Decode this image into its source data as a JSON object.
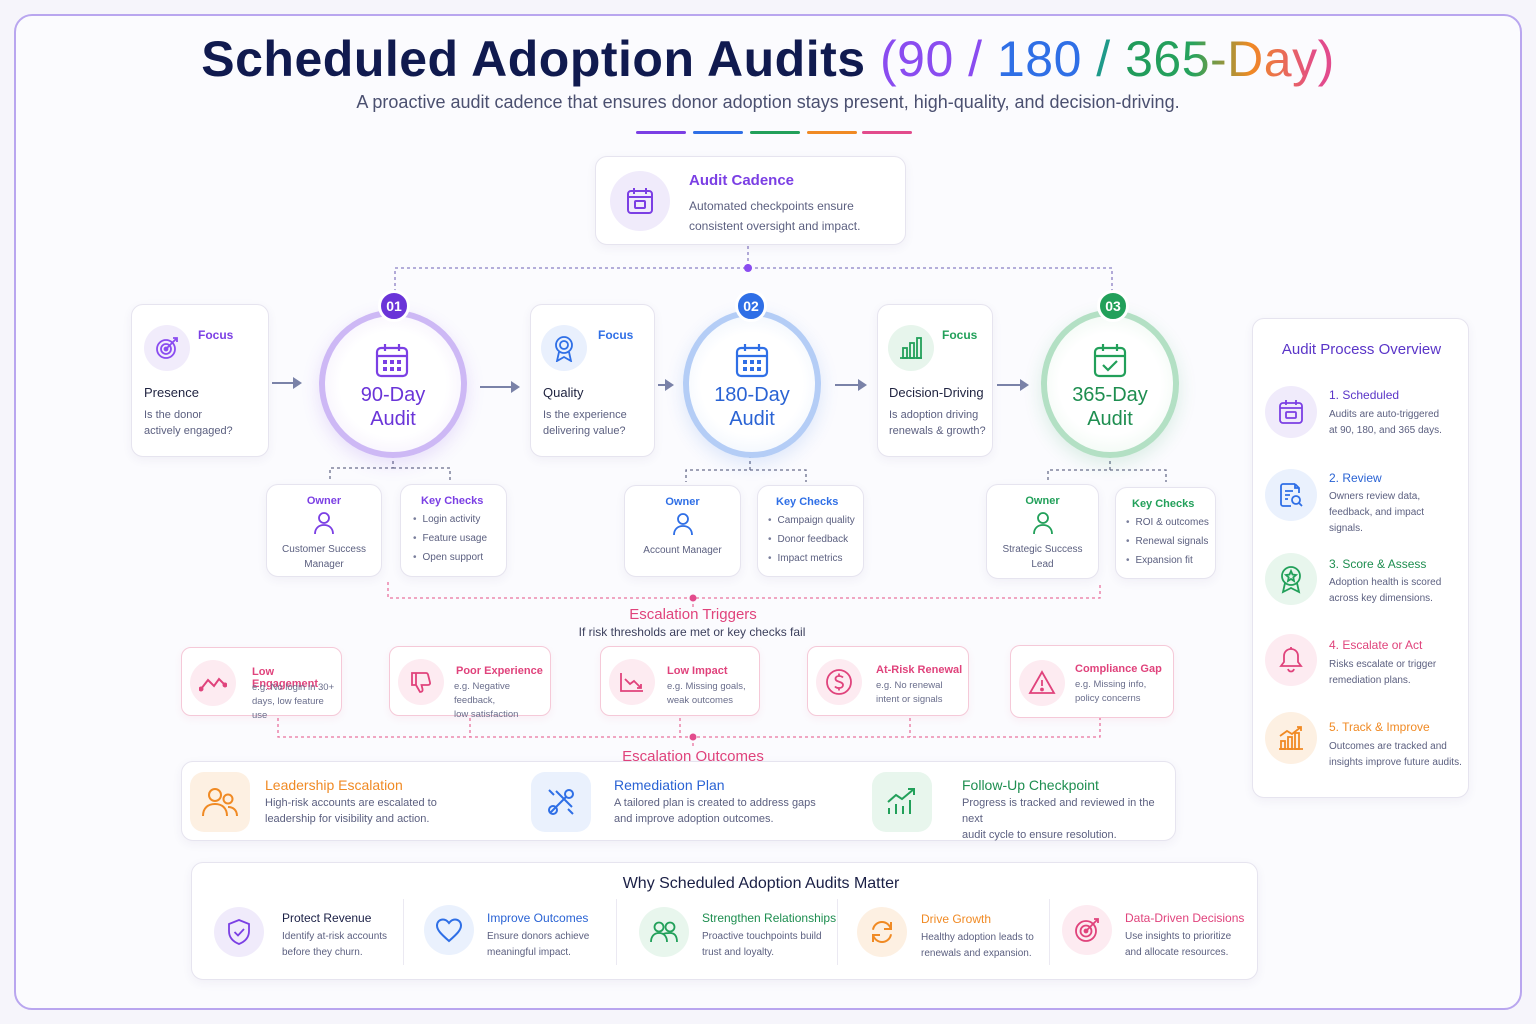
{
  "header": {
    "title_main": "Scheduled Adoption Audits",
    "title_open": "(",
    "title_90": "90",
    "title_sep1": " / ",
    "title_180": "180",
    "title_sep2": " / ",
    "title_365": "365-Day",
    "title_close": ")",
    "subtitle": "A proactive audit cadence that ensures donor adoption stays present, high-quality, and decision-driving."
  },
  "colors": {
    "purple": "#7b3fe4",
    "blue": "#2f6fe6",
    "green": "#22a05a",
    "orange": "#f08a24",
    "pink": "#e24b8c"
  },
  "cadence": {
    "title": "Audit Cadence",
    "desc_line1": "Automated checkpoints ensure",
    "desc_line2": "consistent oversight and impact.",
    "icon": "calendar-icon"
  },
  "stages": [
    {
      "badge": "01",
      "label_line1": "90-Day",
      "label_line2": "Audit",
      "focus_label": "Focus",
      "focus_title": "Presence",
      "focus_q1": "Is the donor",
      "focus_q2": "actively engaged?",
      "owner_label": "Owner",
      "owner_line1": "Customer Success",
      "owner_line2": "Manager",
      "checks_label": "Key Checks",
      "checks": [
        "Login activity",
        "Feature usage",
        "Open support"
      ]
    },
    {
      "badge": "02",
      "label_line1": "180-Day",
      "label_line2": "Audit",
      "focus_label": "Focus",
      "focus_title": "Quality",
      "focus_q1": "Is the experience",
      "focus_q2": "delivering value?",
      "owner_label": "Owner",
      "owner_line1": "Account Manager",
      "owner_line2": "",
      "checks_label": "Key Checks",
      "checks": [
        "Campaign quality",
        "Donor feedback",
        "Impact metrics"
      ]
    },
    {
      "badge": "03",
      "label_line1": "365-Day",
      "label_line2": "Audit",
      "focus_label": "Focus",
      "focus_title": "Decision-Driving",
      "focus_q1": "Is adoption driving",
      "focus_q2": "renewals & growth?",
      "owner_label": "Owner",
      "owner_line1": "Strategic Success",
      "owner_line2": "Lead",
      "checks_label": "Key Checks",
      "checks": [
        "ROI & outcomes",
        "Renewal signals",
        "Expansion fit"
      ]
    }
  ],
  "triggers": {
    "title": "Escalation Triggers",
    "subtitle": "If risk thresholds are met or key checks fail",
    "items": [
      {
        "title": "Low Engagement",
        "d1": "e.g. No login in 30+",
        "d2": "days, low feature use",
        "icon": "trend-down-line-icon"
      },
      {
        "title": "Poor Experience",
        "d1": "e.g. Negative feedback,",
        "d2": "low satisfaction",
        "icon": "thumbs-down-icon"
      },
      {
        "title": "Low Impact",
        "d1": "e.g. Missing goals,",
        "d2": "weak outcomes",
        "icon": "chart-down-icon"
      },
      {
        "title": "At-Risk Renewal",
        "d1": "e.g. No renewal",
        "d2": "intent or signals",
        "icon": "dollar-icon"
      },
      {
        "title": "Compliance Gap",
        "d1": "e.g. Missing info,",
        "d2": "policy concerns",
        "icon": "warning-icon"
      }
    ]
  },
  "outcomes": {
    "title": "Escalation Outcomes",
    "items": [
      {
        "title": "Leadership Escalation",
        "d1": "High-risk accounts are escalated to",
        "d2": "leadership for visibility and action.",
        "icon": "people-icon"
      },
      {
        "title": "Remediation Plan",
        "d1": "A tailored plan is created to address gaps",
        "d2": "and improve adoption outcomes.",
        "icon": "tools-icon"
      },
      {
        "title": "Follow-Up Checkpoint",
        "d1": "Progress is tracked and reviewed in the next",
        "d2": "audit cycle to ensure resolution.",
        "icon": "growth-chart-icon"
      }
    ]
  },
  "why": {
    "title": "Why Scheduled Adoption Audits Matter",
    "items": [
      {
        "title": "Protect Revenue",
        "d1": "Identify at-risk accounts",
        "d2": "before they churn.",
        "icon": "shield-icon"
      },
      {
        "title": "Improve Outcomes",
        "d1": "Ensure donors achieve",
        "d2": "meaningful impact.",
        "icon": "heart-icon"
      },
      {
        "title": "Strengthen Relationships",
        "d1": "Proactive touchpoints build",
        "d2": "trust and loyalty.",
        "icon": "group-icon"
      },
      {
        "title": "Drive Growth",
        "d1": "Healthy adoption leads to",
        "d2": "renewals and expansion.",
        "icon": "refresh-icon"
      },
      {
        "title": "Data-Driven Decisions",
        "d1": "Use insights to prioritize",
        "d2": "and allocate resources.",
        "icon": "target-icon"
      }
    ]
  },
  "process": {
    "title": "Audit Process Overview",
    "steps": [
      {
        "title": "1. Scheduled",
        "d1": "Audits are auto-triggered",
        "d2": "at 90, 180, and 365 days.",
        "d3": "",
        "icon": "calendar-icon"
      },
      {
        "title": "2. Review",
        "d1": "Owners review data,",
        "d2": "feedback, and impact",
        "d3": "signals.",
        "icon": "document-search-icon"
      },
      {
        "title": "3. Score & Assess",
        "d1": "Adoption health is scored",
        "d2": "across key dimensions.",
        "d3": "",
        "icon": "award-icon"
      },
      {
        "title": "4. Escalate or Act",
        "d1": "Risks escalate or trigger",
        "d2": "remediation plans.",
        "d3": "",
        "icon": "bell-icon"
      },
      {
        "title": "5. Track & Improve",
        "d1": "Outcomes are tracked and",
        "d2": "insights improve future audits.",
        "d3": "",
        "icon": "bar-chart-icon"
      }
    ]
  }
}
